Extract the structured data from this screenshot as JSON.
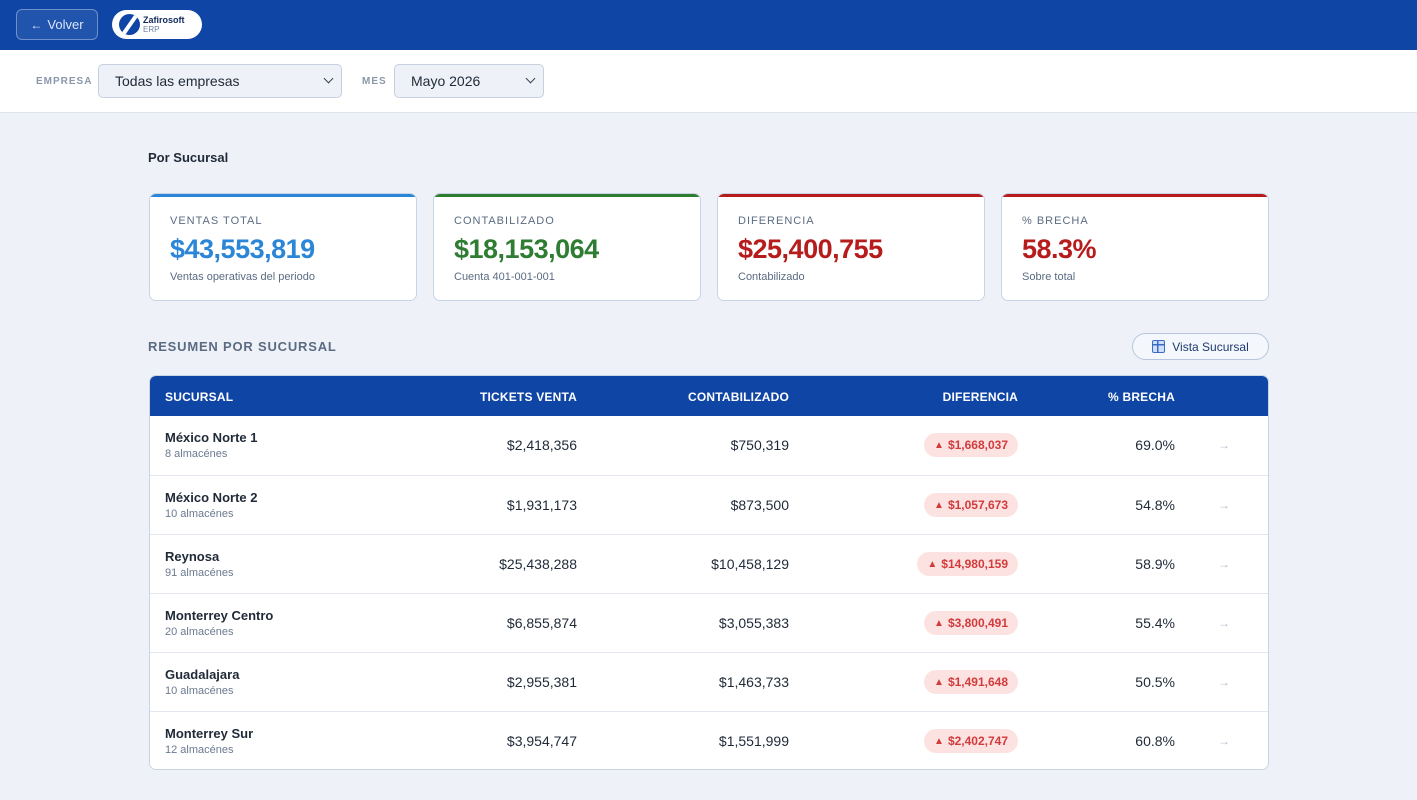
{
  "header": {
    "back_label": "Volver",
    "logo_name": "Zafirosoft",
    "logo_sub": "ERP"
  },
  "filters": {
    "empresa_label": "EMPRESA",
    "empresa_value": "Todas las empresas",
    "mes_label": "MES",
    "mes_value": "Mayo 2026"
  },
  "section_title": "Por Sucursal",
  "kpis": [
    {
      "label": "VENTAS TOTAL",
      "value": "$43,553,819",
      "sub": "Ventas operativas del periodo",
      "color": "#2b86d8"
    },
    {
      "label": "CONTABILIZADO",
      "value": "$18,153,064",
      "sub": "Cuenta 401-001-001",
      "color": "#2e7d32"
    },
    {
      "label": "DIFERENCIA",
      "value": "$25,400,755",
      "sub": "Contabilizado",
      "color": "#b71c1c"
    },
    {
      "label": "% BRECHA",
      "value": "58.3%",
      "sub": "Sobre total",
      "color": "#b71c1c"
    }
  ],
  "resumen": {
    "title": "RESUMEN POR SUCURSAL",
    "vista_button": "Vista Sucursal"
  },
  "table": {
    "headers": [
      "SUCURSAL",
      "TICKETS VENTA",
      "CONTABILIZADO",
      "DIFERENCIA",
      "% BRECHA"
    ],
    "rows": [
      {
        "name": "México Norte 1",
        "sub": "8 almacénes",
        "tickets": "$2,418,356",
        "contab": "$750,319",
        "diff": "$1,668,037",
        "pct": "69.0%"
      },
      {
        "name": "México Norte 2",
        "sub": "10 almacénes",
        "tickets": "$1,931,173",
        "contab": "$873,500",
        "diff": "$1,057,673",
        "pct": "54.8%"
      },
      {
        "name": "Reynosa",
        "sub": "91 almacénes",
        "tickets": "$25,438,288",
        "contab": "$10,458,129",
        "diff": "$14,980,159",
        "pct": "58.9%"
      },
      {
        "name": "Monterrey Centro",
        "sub": "20 almacénes",
        "tickets": "$6,855,874",
        "contab": "$3,055,383",
        "diff": "$3,800,491",
        "pct": "55.4%"
      },
      {
        "name": "Guadalajara",
        "sub": "10 almacénes",
        "tickets": "$2,955,381",
        "contab": "$1,463,733",
        "diff": "$1,491,648",
        "pct": "50.5%"
      },
      {
        "name": "Monterrey Sur",
        "sub": "12 almacénes",
        "tickets": "$3,954,747",
        "contab": "$1,551,999",
        "diff": "$2,402,747",
        "pct": "60.8%"
      }
    ]
  },
  "colors": {
    "brand": "#0f46a6",
    "badge_bg": "#fde2e2",
    "badge_text": "#d23b3b"
  }
}
